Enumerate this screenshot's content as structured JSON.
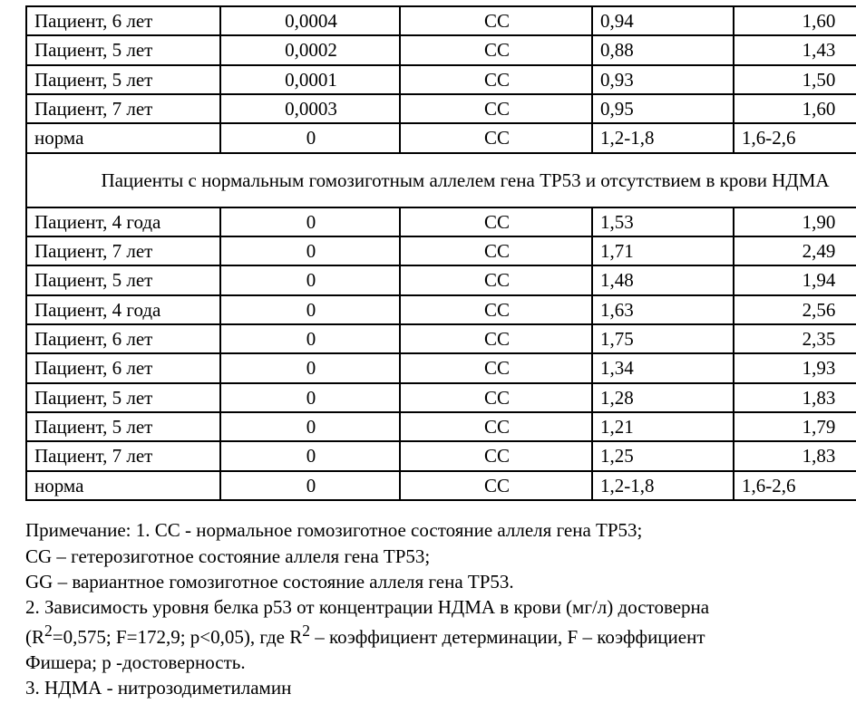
{
  "table": {
    "columns": [
      {
        "class": "col0",
        "align": "left"
      },
      {
        "class": "col1",
        "align": "center"
      },
      {
        "class": "col2",
        "align": "center"
      },
      {
        "class": "col3",
        "align": "left"
      },
      {
        "class": "col4",
        "align": "center"
      }
    ],
    "col4_left_rows": [
      "b1r4",
      "b2r9"
    ],
    "rows": [
      {
        "id": "b1r0",
        "cells": [
          "Пациент, 6 лет",
          "0,0004",
          "CC",
          "0,94",
          "1,60"
        ]
      },
      {
        "id": "b1r1",
        "cells": [
          "Пациент, 5  лет",
          "0,0002",
          "CC",
          "0,88",
          "1,43"
        ]
      },
      {
        "id": "b1r2",
        "cells": [
          "Пациент, 5 лет",
          "0,0001",
          "CC",
          "0,93",
          "1,50"
        ]
      },
      {
        "id": "b1r3",
        "cells": [
          "Пациент, 7  лет",
          "0,0003",
          "CC",
          "0,95",
          "1,60"
        ]
      },
      {
        "id": "b1r4",
        "cells": [
          "норма",
          "0",
          "CC",
          "1,2-1,8",
          "1,6-2,6"
        ]
      },
      {
        "id": "span1",
        "span": true,
        "text": "Пациенты с нормальным гомозиготным аллелем гена ТР53 и отсутствием  в крови НДМА"
      },
      {
        "id": "b2r0",
        "cells": [
          "Пациент, 4 года",
          "0",
          "CC",
          "1,53",
          "1,90"
        ]
      },
      {
        "id": "b2r1",
        "cells": [
          "Пациент,  7 лет",
          "0",
          "CC",
          "1,71",
          "2,49"
        ]
      },
      {
        "id": "b2r2",
        "cells": [
          "Пациент,  5 лет",
          "0",
          "CC",
          "1,48",
          "1,94"
        ]
      },
      {
        "id": "b2r3",
        "cells": [
          "Пациент,  4 года",
          "0",
          "CC",
          "1,63",
          "2,56"
        ]
      },
      {
        "id": "b2r4",
        "cells": [
          "Пациент,  6 лет",
          "0",
          "CC",
          "1,75",
          "2,35"
        ]
      },
      {
        "id": "b2r5",
        "cells": [
          "Пациент, 6 лет",
          "0",
          "CC",
          "1,34",
          "1,93"
        ]
      },
      {
        "id": "b2r6",
        "cells": [
          "Пациент, 5 лет",
          "0",
          "CC",
          "1,28",
          "1,83"
        ]
      },
      {
        "id": "b2r7",
        "cells": [
          "Пациент, 5 лет",
          "0",
          "CC",
          "1,21",
          "1,79"
        ]
      },
      {
        "id": "b2r8",
        "cells": [
          "Пациент,  7 лет",
          "0",
          "CC",
          "1,25",
          "1,83"
        ]
      },
      {
        "id": "b2r9",
        "cells": [
          "норма",
          "0",
          "CC",
          "1,2-1,8",
          "1,6-2,6"
        ]
      }
    ]
  },
  "notes": {
    "l1": "Примечание: 1. CC - нормальное гомозиготное состояние аллеля гена ТР53;",
    "l2": "CG – гетерозиготное  состояние аллеля гена ТР53;",
    "l3": "GG – вариантное гомозиготное состояние аллеля гена ТР53.",
    "l4": "2. Зависимость уровня белка р53 от    концентрации НДМА в крови (мг/л) достоверна",
    "l5a": "(R",
    "l5b": "=0,575; F=172,9; p<0,05),  где R",
    "l5c": " – коэффициент детерминации, F – коэффициент",
    "sup": "2",
    "l6": "Фишера; p -достоверность.",
    "l7": "3. НДМА - нитрозодиметиламин"
  }
}
